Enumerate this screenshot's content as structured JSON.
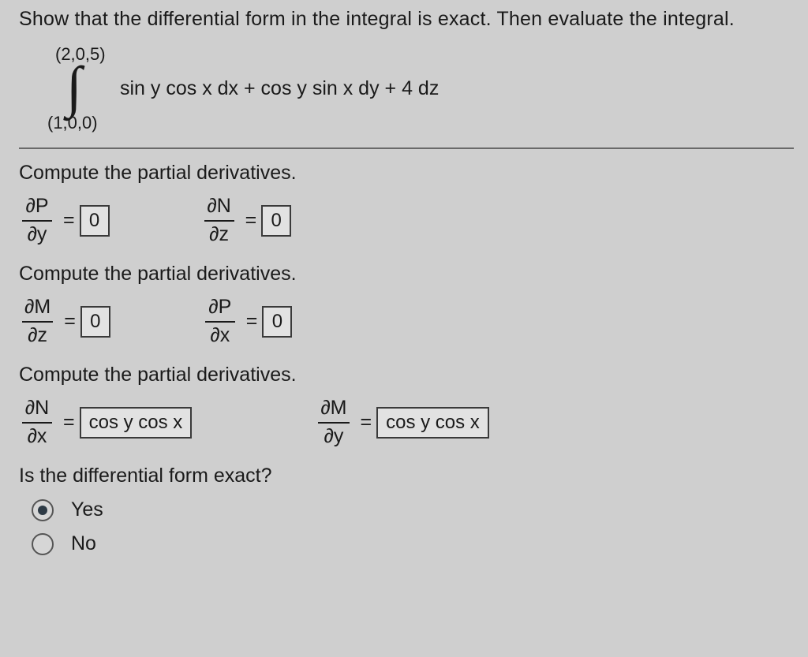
{
  "prompt": "Show that the differential form in the integral is exact. Then evaluate the integral.",
  "integral": {
    "upper_limit": "(2,0,5)",
    "lower_limit": "(1,0,0)",
    "integrand": "sin y cos x dx + cos y sin x dy + 4 dz"
  },
  "sections": [
    {
      "heading": "Compute the partial derivatives.",
      "pairs": [
        {
          "num": "∂P",
          "den": "∂y",
          "value": "0"
        },
        {
          "num": "∂N",
          "den": "∂z",
          "value": "0"
        }
      ]
    },
    {
      "heading": "Compute the partial derivatives.",
      "pairs": [
        {
          "num": "∂M",
          "den": "∂z",
          "value": "0"
        },
        {
          "num": "∂P",
          "den": "∂x",
          "value": "0"
        }
      ]
    },
    {
      "heading": "Compute the partial derivatives.",
      "pairs": [
        {
          "num": "∂N",
          "den": "∂x",
          "value": "cos y cos x"
        },
        {
          "num": "∂M",
          "den": "∂y",
          "value": "cos y cos x"
        }
      ]
    }
  ],
  "question": "Is the differential form exact?",
  "options": {
    "yes": "Yes",
    "no": "No",
    "selected": "yes"
  },
  "style": {
    "background": "#cfcfcf",
    "box_border": "#3a3a3a",
    "box_fill": "#e2e2e2",
    "text_color": "#1a1a1a",
    "font_size_body": 25,
    "font_size_limits": 22
  }
}
